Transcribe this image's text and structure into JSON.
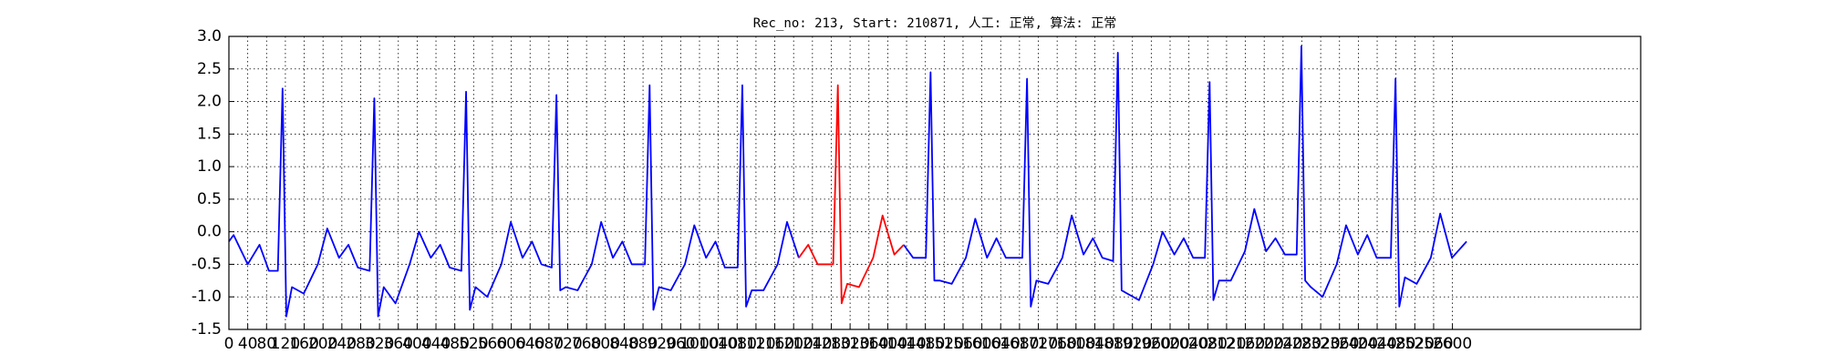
{
  "chart_data": {
    "type": "line",
    "title": "Rec_no: 213, Start: 210871, 人工: 正常, 算法: 正常",
    "x": [
      0,
      10,
      40,
      65,
      85,
      104,
      114,
      122,
      134,
      159,
      189,
      209,
      234,
      254,
      274,
      299,
      309,
      317,
      329,
      354,
      384,
      404,
      429,
      449,
      469,
      494,
      504,
      512,
      524,
      549,
      579,
      599,
      624,
      644,
      664,
      686,
      696,
      704,
      716,
      741,
      771,
      791,
      816,
      836,
      856,
      884,
      894,
      902,
      914,
      939,
      969,
      989,
      1014,
      1034,
      1054,
      1081,
      1091,
      1099,
      1111,
      1136,
      1166,
      1186,
      1211,
      1231,
      1251,
      1284,
      1294,
      1302,
      1314,
      1339,
      1369,
      1389,
      1414,
      1434,
      1454,
      1481,
      1491,
      1499,
      1511,
      1536,
      1566,
      1586,
      1611,
      1631,
      1651,
      1686,
      1696,
      1704,
      1716,
      1741,
      1771,
      1791,
      1816,
      1836,
      1856,
      1879,
      1889,
      1897,
      1909,
      1934,
      1964,
      1984,
      2009,
      2029,
      2049,
      2074,
      2084,
      2092,
      2104,
      2129,
      2159,
      2179,
      2204,
      2224,
      2244,
      2269,
      2279,
      2287,
      2299,
      2324,
      2354,
      2374,
      2399,
      2419,
      2439,
      2469,
      2479,
      2487,
      2499,
      2524,
      2554,
      2574,
      2599,
      2630
    ],
    "series": [
      {
        "color": "#0000ff",
        "values": [
          -0.15,
          -0.05,
          -0.5,
          -0.2,
          -0.6,
          -0.6,
          2.2,
          -1.3,
          -0.85,
          -0.95,
          -0.5,
          0.05,
          -0.4,
          -0.2,
          -0.55,
          -0.6,
          2.05,
          -1.3,
          -0.85,
          -1.1,
          -0.5,
          0.0,
          -0.4,
          -0.2,
          -0.55,
          -0.6,
          2.15,
          -1.2,
          -0.85,
          -1.0,
          -0.5,
          0.15,
          -0.4,
          -0.15,
          -0.5,
          -0.55,
          2.1,
          -0.9,
          -0.85,
          -0.9,
          -0.5,
          0.15,
          -0.4,
          -0.15,
          -0.5,
          -0.5,
          2.25,
          -1.2,
          -0.85,
          -0.9,
          -0.5,
          0.1,
          -0.4,
          -0.15,
          -0.55,
          -0.55,
          2.25,
          -1.15,
          -0.9,
          -0.9,
          -0.5,
          0.15,
          -0.4,
          null,
          null,
          null,
          null,
          null,
          null,
          null,
          null,
          null,
          null,
          -0.2,
          -0.4,
          -0.4,
          2.45,
          -0.75,
          -0.75,
          -0.8,
          -0.4,
          0.2,
          -0.4,
          -0.1,
          -0.4,
          -0.4,
          2.35,
          -1.15,
          -0.75,
          -0.8,
          -0.4,
          0.25,
          -0.35,
          -0.1,
          -0.4,
          -0.45,
          2.75,
          -0.9,
          -0.95,
          -1.05,
          -0.5,
          0.0,
          -0.35,
          -0.1,
          -0.4,
          -0.4,
          2.3,
          -1.05,
          -0.75,
          -0.75,
          -0.3,
          0.35,
          -0.3,
          -0.1,
          -0.35,
          -0.35,
          2.85,
          -0.75,
          -0.85,
          -1.0,
          -0.5,
          0.1,
          -0.35,
          -0.05,
          -0.4,
          -0.4,
          2.35,
          -1.15,
          -0.7,
          -0.8,
          -0.4,
          0.28,
          -0.4,
          -0.15
        ]
      },
      {
        "color": "#ff0000",
        "values": [
          null,
          null,
          null,
          null,
          null,
          null,
          null,
          null,
          null,
          null,
          null,
          null,
          null,
          null,
          null,
          null,
          null,
          null,
          null,
          null,
          null,
          null,
          null,
          null,
          null,
          null,
          null,
          null,
          null,
          null,
          null,
          null,
          null,
          null,
          null,
          null,
          null,
          null,
          null,
          null,
          null,
          null,
          null,
          null,
          null,
          null,
          null,
          null,
          null,
          null,
          null,
          null,
          null,
          null,
          null,
          null,
          null,
          null,
          null,
          null,
          null,
          null,
          -0.4,
          -0.2,
          -0.5,
          -0.5,
          2.25,
          -1.1,
          -0.8,
          -0.85,
          -0.4,
          0.25,
          -0.35,
          -0.2,
          null,
          null,
          null,
          null,
          null,
          null,
          null,
          null,
          null,
          null,
          null,
          null,
          null,
          null,
          null,
          null,
          null,
          null,
          null,
          null,
          null,
          null,
          null,
          null,
          null,
          null,
          null,
          null,
          null,
          null,
          null,
          null,
          null,
          null,
          null,
          null,
          null,
          null,
          null,
          null,
          null,
          null,
          null,
          null,
          null,
          null,
          null,
          null,
          null,
          null,
          null,
          null,
          null,
          null,
          null,
          null,
          null,
          null,
          null,
          null
        ]
      }
    ],
    "xlim": [
      0,
      3000
    ],
    "xticks": [
      0,
      40,
      80,
      120,
      160,
      200,
      240,
      280,
      320,
      360,
      400,
      440,
      480,
      520,
      560,
      600,
      640,
      680,
      720,
      760,
      800,
      840,
      880,
      920,
      960,
      1000,
      1040,
      1080,
      1120,
      1160,
      1200,
      1240,
      1280,
      1320,
      1360,
      1400,
      1440,
      1480,
      1520,
      1560,
      1600,
      1640,
      1680,
      1720,
      1760,
      1800,
      1840,
      1880,
      1920,
      1960,
      2000,
      2040,
      2080,
      2120,
      2160,
      2200,
      2240,
      2280,
      2320,
      2360,
      2400,
      2440,
      2480,
      2520,
      2560,
      2600
    ],
    "ylim": [
      -1.5,
      3.0
    ],
    "yticks": [
      -1.5,
      {
        "value": -1.0,
        "label": "-1.0"
      },
      -0.5,
      {
        "value": 0.0,
        "label": "0.0"
      },
      0.5,
      {
        "value": 1.0,
        "label": "1.0"
      },
      1.5,
      {
        "value": 2.0,
        "label": "2.0"
      },
      2.5,
      {
        "value": 3.0,
        "label": "3.0"
      }
    ],
    "grid": true
  }
}
